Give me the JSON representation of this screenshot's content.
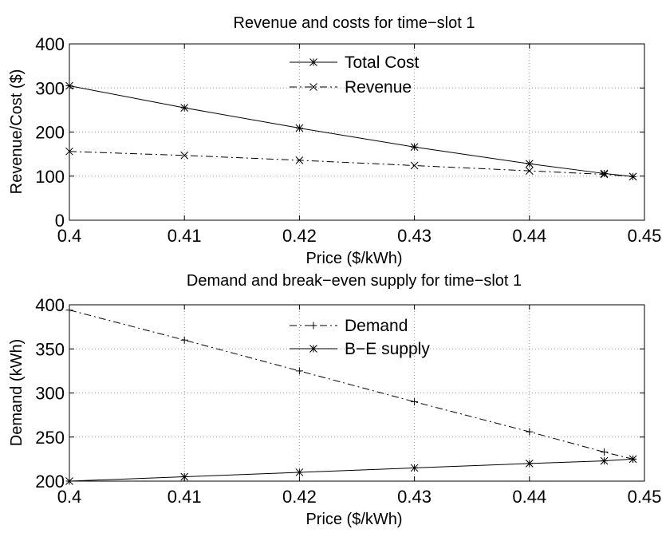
{
  "chart_data": [
    {
      "type": "line",
      "title": "Revenue and costs for time−slot 1",
      "xlabel": "Price ($/kWh)",
      "ylabel": "Revenue/Cost ($)",
      "xlim": [
        0.4,
        0.45
      ],
      "ylim": [
        0,
        400
      ],
      "xticks": [
        0.4,
        0.41,
        0.42,
        0.43,
        0.44,
        0.45
      ],
      "xtick_labels": [
        "0.4",
        "0.41",
        "0.42",
        "0.43",
        "0.44",
        "0.45"
      ],
      "yticks": [
        0,
        100,
        200,
        300,
        400
      ],
      "ytick_labels": [
        "0",
        "100",
        "200",
        "300",
        "400"
      ],
      "grid": true,
      "legend_position": "top-center",
      "series": [
        {
          "name": "Total Cost",
          "line_style": "solid",
          "marker": "asterisk",
          "x": [
            0.4,
            0.41,
            0.42,
            0.43,
            0.44,
            0.4465,
            0.449
          ],
          "y": [
            305,
            255,
            209,
            166,
            128,
            106,
            99
          ]
        },
        {
          "name": "Revenue",
          "line_style": "dashdot",
          "marker": "x",
          "x": [
            0.4,
            0.41,
            0.42,
            0.43,
            0.44,
            0.4465,
            0.449
          ],
          "y": [
            156,
            147,
            136,
            124,
            112,
            104,
            99
          ]
        }
      ]
    },
    {
      "type": "line",
      "title": "Demand and break−even supply for time−slot 1",
      "xlabel": "Price ($/kWh)",
      "ylabel": "Demand (kWh)",
      "xlim": [
        0.4,
        0.45
      ],
      "ylim": [
        200,
        400
      ],
      "xticks": [
        0.4,
        0.41,
        0.42,
        0.43,
        0.44,
        0.45
      ],
      "xtick_labels": [
        "0.4",
        "0.41",
        "0.42",
        "0.43",
        "0.44",
        "0.45"
      ],
      "yticks": [
        200,
        250,
        300,
        350,
        400
      ],
      "ytick_labels": [
        "200",
        "250",
        "300",
        "350",
        "400"
      ],
      "grid": true,
      "legend_position": "top-center",
      "series": [
        {
          "name": "Demand",
          "line_style": "dashdot",
          "marker": "plus",
          "x": [
            0.4,
            0.41,
            0.42,
            0.43,
            0.44,
            0.4465,
            0.449
          ],
          "y": [
            394,
            360,
            325,
            290,
            256,
            233,
            225
          ]
        },
        {
          "name": "B−E supply",
          "line_style": "solid",
          "marker": "asterisk",
          "x": [
            0.4,
            0.41,
            0.42,
            0.43,
            0.44,
            0.4465,
            0.449
          ],
          "y": [
            200,
            205,
            210,
            215,
            220,
            223,
            225
          ]
        }
      ]
    }
  ]
}
